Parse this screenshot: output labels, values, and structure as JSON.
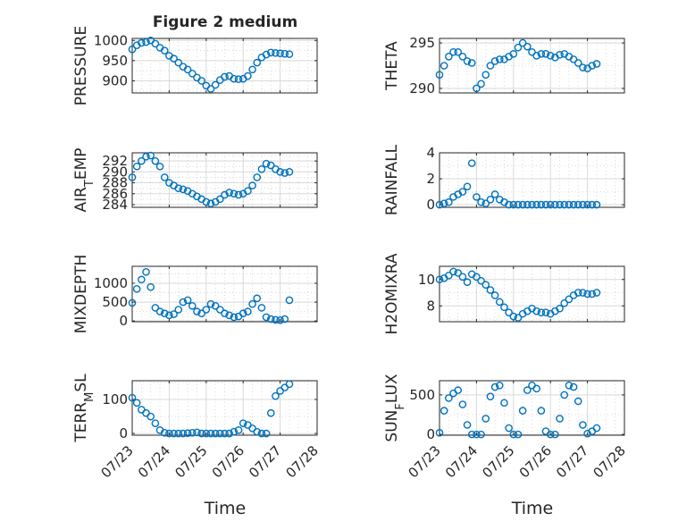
{
  "figure": {
    "title": "Figure 2 medium",
    "x_axis_label": "Time",
    "x_tick_labels": [
      "07/23",
      "07/24",
      "07/25",
      "07/26",
      "07/27",
      "07/28"
    ]
  },
  "colors": {
    "marker": "#0072BD",
    "axes": "#262626",
    "grid": "#d9d9d9"
  },
  "chart_data": [
    {
      "type": "scatter",
      "ylabel": "PRESSURE",
      "x_range": [
        "07/23",
        "07/28"
      ],
      "ylim": [
        870,
        1005
      ],
      "yticks": [
        900,
        950,
        1000
      ],
      "grid": true,
      "x": [
        "07/23 00:00",
        "07/23 03:00",
        "07/23 06:00",
        "07/23 09:00",
        "07/23 12:00",
        "07/23 15:00",
        "07/23 18:00",
        "07/23 21:00",
        "07/24 00:00",
        "07/24 03:00",
        "07/24 06:00",
        "07/24 09:00",
        "07/24 12:00",
        "07/24 15:00",
        "07/24 18:00",
        "07/24 21:00",
        "07/25 00:00",
        "07/25 03:00",
        "07/25 06:00",
        "07/25 09:00",
        "07/25 12:00",
        "07/25 15:00",
        "07/25 18:00",
        "07/25 21:00",
        "07/26 00:00",
        "07/26 03:00",
        "07/26 06:00",
        "07/26 09:00",
        "07/26 12:00",
        "07/26 15:00",
        "07/26 18:00",
        "07/26 21:00",
        "07/27 00:00",
        "07/27 03:00",
        "07/27 06:00"
      ],
      "y": [
        978,
        988,
        994,
        996,
        1000,
        992,
        982,
        975,
        962,
        955,
        945,
        935,
        928,
        918,
        908,
        900,
        888,
        880,
        890,
        902,
        910,
        912,
        905,
        904,
        905,
        912,
        928,
        945,
        958,
        965,
        970,
        969,
        968,
        967,
        966
      ]
    },
    {
      "type": "scatter",
      "ylabel": "THETA",
      "x_range": [
        "07/23",
        "07/28"
      ],
      "ylim": [
        289.5,
        295.5
      ],
      "yticks": [
        290,
        295
      ],
      "grid": true,
      "x": [
        "07/23 00:00",
        "07/23 03:00",
        "07/23 06:00",
        "07/23 09:00",
        "07/23 12:00",
        "07/23 15:00",
        "07/23 18:00",
        "07/23 21:00",
        "07/24 00:00",
        "07/24 03:00",
        "07/24 06:00",
        "07/24 09:00",
        "07/24 12:00",
        "07/24 15:00",
        "07/24 18:00",
        "07/24 21:00",
        "07/25 00:00",
        "07/25 03:00",
        "07/25 06:00",
        "07/25 09:00",
        "07/25 12:00",
        "07/25 15:00",
        "07/25 18:00",
        "07/25 21:00",
        "07/26 00:00",
        "07/26 03:00",
        "07/26 06:00",
        "07/26 09:00",
        "07/26 12:00",
        "07/26 15:00",
        "07/26 18:00",
        "07/26 21:00",
        "07/27 00:00",
        "07/27 03:00",
        "07/27 06:00"
      ],
      "y": [
        291.5,
        292.5,
        293.5,
        294.0,
        294.0,
        293.5,
        293.0,
        292.8,
        290.0,
        290.5,
        291.5,
        292.5,
        293.0,
        293.2,
        293.2,
        293.5,
        293.8,
        294.5,
        295.0,
        294.6,
        294.0,
        293.6,
        293.8,
        293.8,
        293.6,
        293.4,
        293.7,
        293.8,
        293.5,
        293.2,
        292.8,
        292.3,
        292.2,
        292.5,
        292.7
      ]
    },
    {
      "type": "scatter",
      "ylabel": "AIR_TEMP",
      "x_range": [
        "07/23",
        "07/28"
      ],
      "ylim": [
        283.5,
        293.5
      ],
      "yticks": [
        284,
        286,
        288,
        290,
        292
      ],
      "grid": true,
      "x": [
        "07/23 00:00",
        "07/23 03:00",
        "07/23 06:00",
        "07/23 09:00",
        "07/23 12:00",
        "07/23 15:00",
        "07/23 18:00",
        "07/23 21:00",
        "07/24 00:00",
        "07/24 03:00",
        "07/24 06:00",
        "07/24 09:00",
        "07/24 12:00",
        "07/24 15:00",
        "07/24 18:00",
        "07/24 21:00",
        "07/25 00:00",
        "07/25 03:00",
        "07/25 06:00",
        "07/25 09:00",
        "07/25 12:00",
        "07/25 15:00",
        "07/25 18:00",
        "07/25 21:00",
        "07/26 00:00",
        "07/26 03:00",
        "07/26 06:00",
        "07/26 09:00",
        "07/26 12:00",
        "07/26 15:00",
        "07/26 18:00",
        "07/26 21:00",
        "07/27 00:00",
        "07/27 03:00",
        "07/27 06:00"
      ],
      "y": [
        289.0,
        291.0,
        292.0,
        292.8,
        293.0,
        292.0,
        291.0,
        289.0,
        288.0,
        287.5,
        287.0,
        286.8,
        286.5,
        286.0,
        285.5,
        285.0,
        284.5,
        284.2,
        284.5,
        285.0,
        285.8,
        286.2,
        286.0,
        285.8,
        286.0,
        286.5,
        287.5,
        289.0,
        290.5,
        291.5,
        291.2,
        290.5,
        290.0,
        289.8,
        290.0
      ]
    },
    {
      "type": "scatter",
      "ylabel": "RAINFALL",
      "x_range": [
        "07/23",
        "07/28"
      ],
      "ylim": [
        -0.2,
        4
      ],
      "yticks": [
        0,
        2,
        4
      ],
      "grid": true,
      "x": [
        "07/23 00:00",
        "07/23 03:00",
        "07/23 06:00",
        "07/23 09:00",
        "07/23 12:00",
        "07/23 15:00",
        "07/23 18:00",
        "07/23 21:00",
        "07/24 00:00",
        "07/24 03:00",
        "07/24 06:00",
        "07/24 09:00",
        "07/24 12:00",
        "07/24 15:00",
        "07/24 18:00",
        "07/24 21:00",
        "07/25 00:00",
        "07/25 03:00",
        "07/25 06:00",
        "07/25 09:00",
        "07/25 12:00",
        "07/25 15:00",
        "07/25 18:00",
        "07/25 21:00",
        "07/26 00:00",
        "07/26 03:00",
        "07/26 06:00",
        "07/26 09:00",
        "07/26 12:00",
        "07/26 15:00",
        "07/26 18:00",
        "07/26 21:00",
        "07/27 00:00",
        "07/27 03:00",
        "07/27 06:00"
      ],
      "y": [
        0,
        0.1,
        0.2,
        0.6,
        0.8,
        1.0,
        1.4,
        3.2,
        0.6,
        0.2,
        0.1,
        0.4,
        0.8,
        0.4,
        0.2,
        0,
        0,
        0,
        0,
        0,
        0,
        0,
        0,
        0,
        0,
        0,
        0,
        0,
        0,
        0,
        0,
        0,
        0,
        0,
        0
      ]
    },
    {
      "type": "scatter",
      "ylabel": "MIXDEPTH",
      "x_range": [
        "07/23",
        "07/28"
      ],
      "ylim": [
        -20,
        1450
      ],
      "yticks": [
        0,
        500,
        1000
      ],
      "grid": true,
      "x": [
        "07/23 00:00",
        "07/23 03:00",
        "07/23 06:00",
        "07/23 09:00",
        "07/23 12:00",
        "07/23 15:00",
        "07/23 18:00",
        "07/23 21:00",
        "07/24 00:00",
        "07/24 03:00",
        "07/24 06:00",
        "07/24 09:00",
        "07/24 12:00",
        "07/24 15:00",
        "07/24 18:00",
        "07/24 21:00",
        "07/25 00:00",
        "07/25 03:00",
        "07/25 06:00",
        "07/25 09:00",
        "07/25 12:00",
        "07/25 15:00",
        "07/25 18:00",
        "07/25 21:00",
        "07/26 00:00",
        "07/26 03:00",
        "07/26 06:00",
        "07/26 09:00",
        "07/26 12:00",
        "07/26 15:00",
        "07/26 18:00",
        "07/26 21:00",
        "07/27 00:00",
        "07/27 03:00",
        "07/27 06:00"
      ],
      "y": [
        480,
        850,
        1100,
        1300,
        900,
        350,
        250,
        200,
        150,
        180,
        300,
        500,
        550,
        400,
        250,
        200,
        300,
        450,
        400,
        300,
        200,
        150,
        100,
        120,
        200,
        250,
        450,
        600,
        350,
        100,
        50,
        30,
        20,
        50,
        550
      ]
    },
    {
      "type": "scatter",
      "ylabel": "H2OMIXRA",
      "x_range": [
        "07/23",
        "07/28"
      ],
      "ylim": [
        6.8,
        11
      ],
      "yticks": [
        8,
        10
      ],
      "grid": true,
      "x": [
        "07/23 00:00",
        "07/23 03:00",
        "07/23 06:00",
        "07/23 09:00",
        "07/23 12:00",
        "07/23 15:00",
        "07/23 18:00",
        "07/23 21:00",
        "07/24 00:00",
        "07/24 03:00",
        "07/24 06:00",
        "07/24 09:00",
        "07/24 12:00",
        "07/24 15:00",
        "07/24 18:00",
        "07/24 21:00",
        "07/25 00:00",
        "07/25 03:00",
        "07/25 06:00",
        "07/25 09:00",
        "07/25 12:00",
        "07/25 15:00",
        "07/25 18:00",
        "07/25 21:00",
        "07/26 00:00",
        "07/26 03:00",
        "07/26 06:00",
        "07/26 09:00",
        "07/26 12:00",
        "07/26 15:00",
        "07/26 18:00",
        "07/26 21:00",
        "07/27 00:00",
        "07/27 03:00",
        "07/27 06:00"
      ],
      "y": [
        10.0,
        10.1,
        10.3,
        10.6,
        10.5,
        10.2,
        9.8,
        10.4,
        10.2,
        9.9,
        9.6,
        9.2,
        8.8,
        8.3,
        7.9,
        7.5,
        7.2,
        7.1,
        7.4,
        7.6,
        7.8,
        7.6,
        7.5,
        7.5,
        7.4,
        7.6,
        7.8,
        8.2,
        8.5,
        8.8,
        9.0,
        9.0,
        8.9,
        8.9,
        9.0
      ]
    },
    {
      "type": "scatter",
      "ylabel": "TERR_MSL",
      "x_range": [
        "07/23",
        "07/28"
      ],
      "ylim": [
        -5,
        155
      ],
      "yticks": [
        0,
        100
      ],
      "grid": true,
      "x": [
        "07/23 00:00",
        "07/23 03:00",
        "07/23 06:00",
        "07/23 09:00",
        "07/23 12:00",
        "07/23 15:00",
        "07/23 18:00",
        "07/23 21:00",
        "07/24 00:00",
        "07/24 03:00",
        "07/24 06:00",
        "07/24 09:00",
        "07/24 12:00",
        "07/24 15:00",
        "07/24 18:00",
        "07/24 21:00",
        "07/25 00:00",
        "07/25 03:00",
        "07/25 06:00",
        "07/25 09:00",
        "07/25 12:00",
        "07/25 15:00",
        "07/25 18:00",
        "07/25 21:00",
        "07/26 00:00",
        "07/26 03:00",
        "07/26 06:00",
        "07/26 09:00",
        "07/26 12:00",
        "07/26 15:00",
        "07/26 18:00",
        "07/26 21:00",
        "07/27 00:00",
        "07/27 03:00",
        "07/27 06:00"
      ],
      "y": [
        105,
        90,
        70,
        60,
        50,
        30,
        10,
        2,
        0,
        0,
        0,
        0,
        1,
        2,
        3,
        0,
        0,
        0,
        0,
        0,
        0,
        0,
        5,
        10,
        30,
        25,
        15,
        5,
        0,
        0,
        60,
        110,
        125,
        135,
        145
      ]
    },
    {
      "type": "scatter",
      "ylabel": "SUN_FLUX",
      "x_range": [
        "07/23",
        "07/28"
      ],
      "ylim": [
        -10,
        680
      ],
      "yticks": [
        0,
        500
      ],
      "grid": true,
      "x": [
        "07/23 00:00",
        "07/23 03:00",
        "07/23 06:00",
        "07/23 09:00",
        "07/23 12:00",
        "07/23 15:00",
        "07/23 18:00",
        "07/23 21:00",
        "07/24 00:00",
        "07/24 03:00",
        "07/24 06:00",
        "07/24 09:00",
        "07/24 12:00",
        "07/24 15:00",
        "07/24 18:00",
        "07/24 21:00",
        "07/25 00:00",
        "07/25 03:00",
        "07/25 06:00",
        "07/25 09:00",
        "07/25 12:00",
        "07/25 15:00",
        "07/25 18:00",
        "07/25 21:00",
        "07/26 00:00",
        "07/26 03:00",
        "07/26 06:00",
        "07/26 09:00",
        "07/26 12:00",
        "07/26 15:00",
        "07/26 18:00",
        "07/26 21:00",
        "07/27 00:00",
        "07/27 03:00",
        "07/27 06:00"
      ],
      "y": [
        20,
        300,
        460,
        520,
        560,
        380,
        120,
        0,
        0,
        0,
        200,
        480,
        600,
        620,
        400,
        80,
        0,
        0,
        300,
        560,
        620,
        580,
        300,
        40,
        0,
        0,
        200,
        500,
        620,
        600,
        420,
        120,
        10,
        40,
        80
      ]
    }
  ]
}
